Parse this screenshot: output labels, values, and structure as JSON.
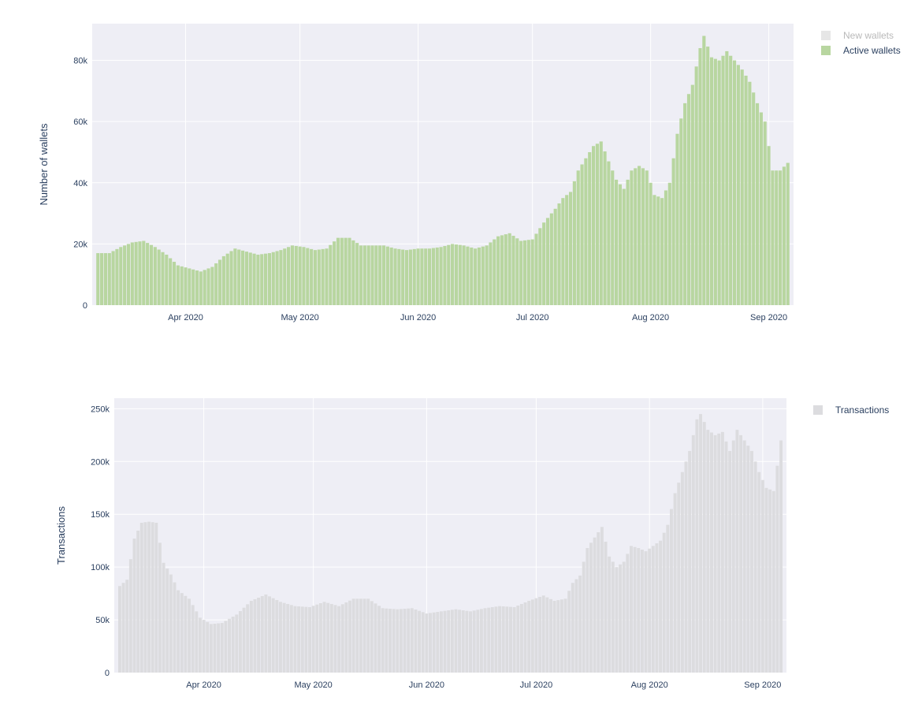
{
  "chart_data": [
    {
      "type": "bar",
      "barmode": "overlay",
      "ylabel": "Number of wallets",
      "ylim": [
        0,
        92000
      ],
      "y_ticks": [
        {
          "value": 0,
          "label": "0"
        },
        {
          "value": 20000,
          "label": "20k"
        },
        {
          "value": 40000,
          "label": "40k"
        },
        {
          "value": 60000,
          "label": "60k"
        },
        {
          "value": 80000,
          "label": "80k"
        }
      ],
      "x_range": [
        "2020-03-09",
        "2020-09-06"
      ],
      "x_ticks": [
        {
          "value": "2020-04-01",
          "label": "Apr 2020"
        },
        {
          "value": "2020-05-01",
          "label": "May 2020"
        },
        {
          "value": "2020-06-01",
          "label": "Jun 2020"
        },
        {
          "value": "2020-07-01",
          "label": "Jul 2020"
        },
        {
          "value": "2020-08-01",
          "label": "Aug 2020"
        },
        {
          "value": "2020-09-01",
          "label": "Sep 2020"
        }
      ],
      "grid": true,
      "legend_position": "top-right",
      "colors": {
        "plot_bg": "#eeeef5",
        "grid": "#ffffff"
      },
      "series": [
        {
          "name": "New wallets",
          "visible": false,
          "color": "#e6e6e6",
          "values": []
        },
        {
          "name": "Active wallets",
          "visible": true,
          "color": "#b8d6a0",
          "x": [
            "2020-03-09",
            "2020-03-12",
            "2020-03-15",
            "2020-03-18",
            "2020-03-21",
            "2020-03-24",
            "2020-03-27",
            "2020-03-30",
            "2020-04-02",
            "2020-04-05",
            "2020-04-08",
            "2020-04-11",
            "2020-04-14",
            "2020-04-17",
            "2020-04-20",
            "2020-04-23",
            "2020-04-26",
            "2020-04-29",
            "2020-05-02",
            "2020-05-05",
            "2020-05-08",
            "2020-05-11",
            "2020-05-14",
            "2020-05-17",
            "2020-05-20",
            "2020-05-23",
            "2020-05-26",
            "2020-05-29",
            "2020-06-01",
            "2020-06-04",
            "2020-06-07",
            "2020-06-10",
            "2020-06-13",
            "2020-06-16",
            "2020-06-19",
            "2020-06-22",
            "2020-06-25",
            "2020-06-28",
            "2020-07-01",
            "2020-07-04",
            "2020-07-07",
            "2020-07-09",
            "2020-07-11",
            "2020-07-13",
            "2020-07-15",
            "2020-07-17",
            "2020-07-19",
            "2020-07-21",
            "2020-07-23",
            "2020-07-25",
            "2020-07-27",
            "2020-07-29",
            "2020-07-31",
            "2020-08-02",
            "2020-08-04",
            "2020-08-06",
            "2020-08-08",
            "2020-08-10",
            "2020-08-12",
            "2020-08-14",
            "2020-08-15",
            "2020-08-17",
            "2020-08-19",
            "2020-08-21",
            "2020-08-23",
            "2020-08-25",
            "2020-08-27",
            "2020-08-29",
            "2020-08-31",
            "2020-09-02",
            "2020-09-04",
            "2020-09-06"
          ],
          "values": [
            17000,
            17000,
            19000,
            20500,
            21000,
            19000,
            16500,
            13000,
            12000,
            11000,
            12500,
            16000,
            18500,
            17500,
            16500,
            17000,
            18000,
            19500,
            19000,
            18000,
            18500,
            22000,
            22000,
            19500,
            19500,
            19500,
            18500,
            18000,
            18500,
            18500,
            19000,
            20000,
            19500,
            18500,
            19500,
            22500,
            23500,
            21000,
            21500,
            27000,
            31500,
            35000,
            37000,
            44000,
            48000,
            52000,
            53500,
            47000,
            41000,
            38000,
            44000,
            45500,
            44000,
            36000,
            35000,
            40000,
            56000,
            66000,
            72000,
            84000,
            88000,
            81000,
            80000,
            83000,
            80000,
            77000,
            73000,
            66000,
            60000,
            44000,
            44000,
            46500
          ]
        }
      ]
    },
    {
      "type": "bar",
      "ylabel": "Transactions",
      "ylim": [
        0,
        260000
      ],
      "y_ticks": [
        {
          "value": 0,
          "label": "0"
        },
        {
          "value": 50000,
          "label": "50k"
        },
        {
          "value": 100000,
          "label": "100k"
        },
        {
          "value": 150000,
          "label": "150k"
        },
        {
          "value": 200000,
          "label": "200k"
        },
        {
          "value": 250000,
          "label": "250k"
        }
      ],
      "x_range": [
        "2020-03-09",
        "2020-09-06"
      ],
      "x_ticks": [
        {
          "value": "2020-04-01",
          "label": "Apr 2020"
        },
        {
          "value": "2020-05-01",
          "label": "May 2020"
        },
        {
          "value": "2020-06-01",
          "label": "Jun 2020"
        },
        {
          "value": "2020-07-01",
          "label": "Jul 2020"
        },
        {
          "value": "2020-08-01",
          "label": "Aug 2020"
        },
        {
          "value": "2020-09-01",
          "label": "Sep 2020"
        }
      ],
      "grid": true,
      "legend_position": "top-right",
      "colors": {
        "plot_bg": "#eeeef5",
        "grid": "#ffffff"
      },
      "series": [
        {
          "name": "Transactions",
          "visible": true,
          "color": "#dcdcdf",
          "x": [
            "2020-03-09",
            "2020-03-11",
            "2020-03-13",
            "2020-03-15",
            "2020-03-17",
            "2020-03-19",
            "2020-03-21",
            "2020-03-23",
            "2020-03-25",
            "2020-03-28",
            "2020-03-31",
            "2020-04-03",
            "2020-04-06",
            "2020-04-10",
            "2020-04-14",
            "2020-04-18",
            "2020-04-22",
            "2020-04-26",
            "2020-04-30",
            "2020-05-04",
            "2020-05-08",
            "2020-05-12",
            "2020-05-16",
            "2020-05-20",
            "2020-05-24",
            "2020-05-28",
            "2020-06-01",
            "2020-06-05",
            "2020-06-09",
            "2020-06-13",
            "2020-06-17",
            "2020-06-21",
            "2020-06-25",
            "2020-06-29",
            "2020-07-03",
            "2020-07-06",
            "2020-07-09",
            "2020-07-11",
            "2020-07-13",
            "2020-07-15",
            "2020-07-17",
            "2020-07-19",
            "2020-07-21",
            "2020-07-23",
            "2020-07-25",
            "2020-07-27",
            "2020-07-29",
            "2020-07-31",
            "2020-08-02",
            "2020-08-04",
            "2020-08-06",
            "2020-08-08",
            "2020-08-10",
            "2020-08-12",
            "2020-08-14",
            "2020-08-15",
            "2020-08-17",
            "2020-08-19",
            "2020-08-21",
            "2020-08-23",
            "2020-08-25",
            "2020-08-27",
            "2020-08-29",
            "2020-08-31",
            "2020-09-02",
            "2020-09-04",
            "2020-09-06"
          ],
          "values": [
            82000,
            88000,
            127000,
            142000,
            143000,
            142000,
            104000,
            93000,
            78000,
            70000,
            52000,
            46000,
            47000,
            55000,
            68000,
            74000,
            67000,
            63000,
            62000,
            67000,
            63000,
            70000,
            70000,
            61000,
            60000,
            61000,
            56000,
            58000,
            60000,
            58000,
            61000,
            63000,
            62000,
            68000,
            73000,
            68000,
            70000,
            85000,
            92000,
            118000,
            128000,
            138000,
            110000,
            100000,
            105000,
            120000,
            118000,
            115000,
            120000,
            125000,
            140000,
            170000,
            190000,
            210000,
            240000,
            245000,
            230000,
            225000,
            228000,
            210000,
            230000,
            220000,
            210000,
            190000,
            175000,
            172000,
            220000
          ]
        }
      ]
    }
  ]
}
